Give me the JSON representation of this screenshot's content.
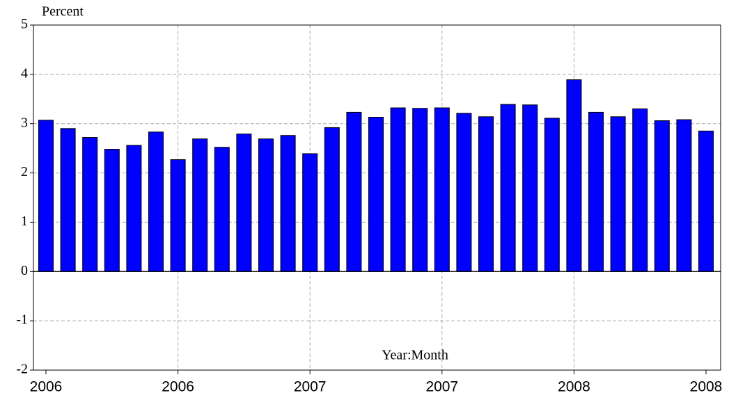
{
  "chart_data": {
    "type": "bar",
    "y_label": "Percent",
    "annotation": "Year:Month",
    "categories": [
      "2006",
      null,
      null,
      null,
      null,
      null,
      "2006",
      null,
      null,
      null,
      null,
      null,
      "2007",
      null,
      null,
      null,
      null,
      null,
      "2007",
      null,
      null,
      null,
      null,
      null,
      "2008",
      null,
      null,
      null,
      null,
      null,
      "2008"
    ],
    "values": [
      3.07,
      2.9,
      2.72,
      2.48,
      2.56,
      2.83,
      2.27,
      2.69,
      2.52,
      2.79,
      2.69,
      2.76,
      2.39,
      2.92,
      3.23,
      3.13,
      3.32,
      3.31,
      3.32,
      3.21,
      3.14,
      3.39,
      3.38,
      3.11,
      3.89,
      3.23,
      3.14,
      3.3,
      3.06,
      3.08,
      2.85
    ],
    "color": "#0000ff",
    "ylim": [
      -2,
      5
    ],
    "yticks": [
      -2,
      -1,
      0,
      1,
      2,
      3,
      4,
      5
    ],
    "grid": true
  }
}
